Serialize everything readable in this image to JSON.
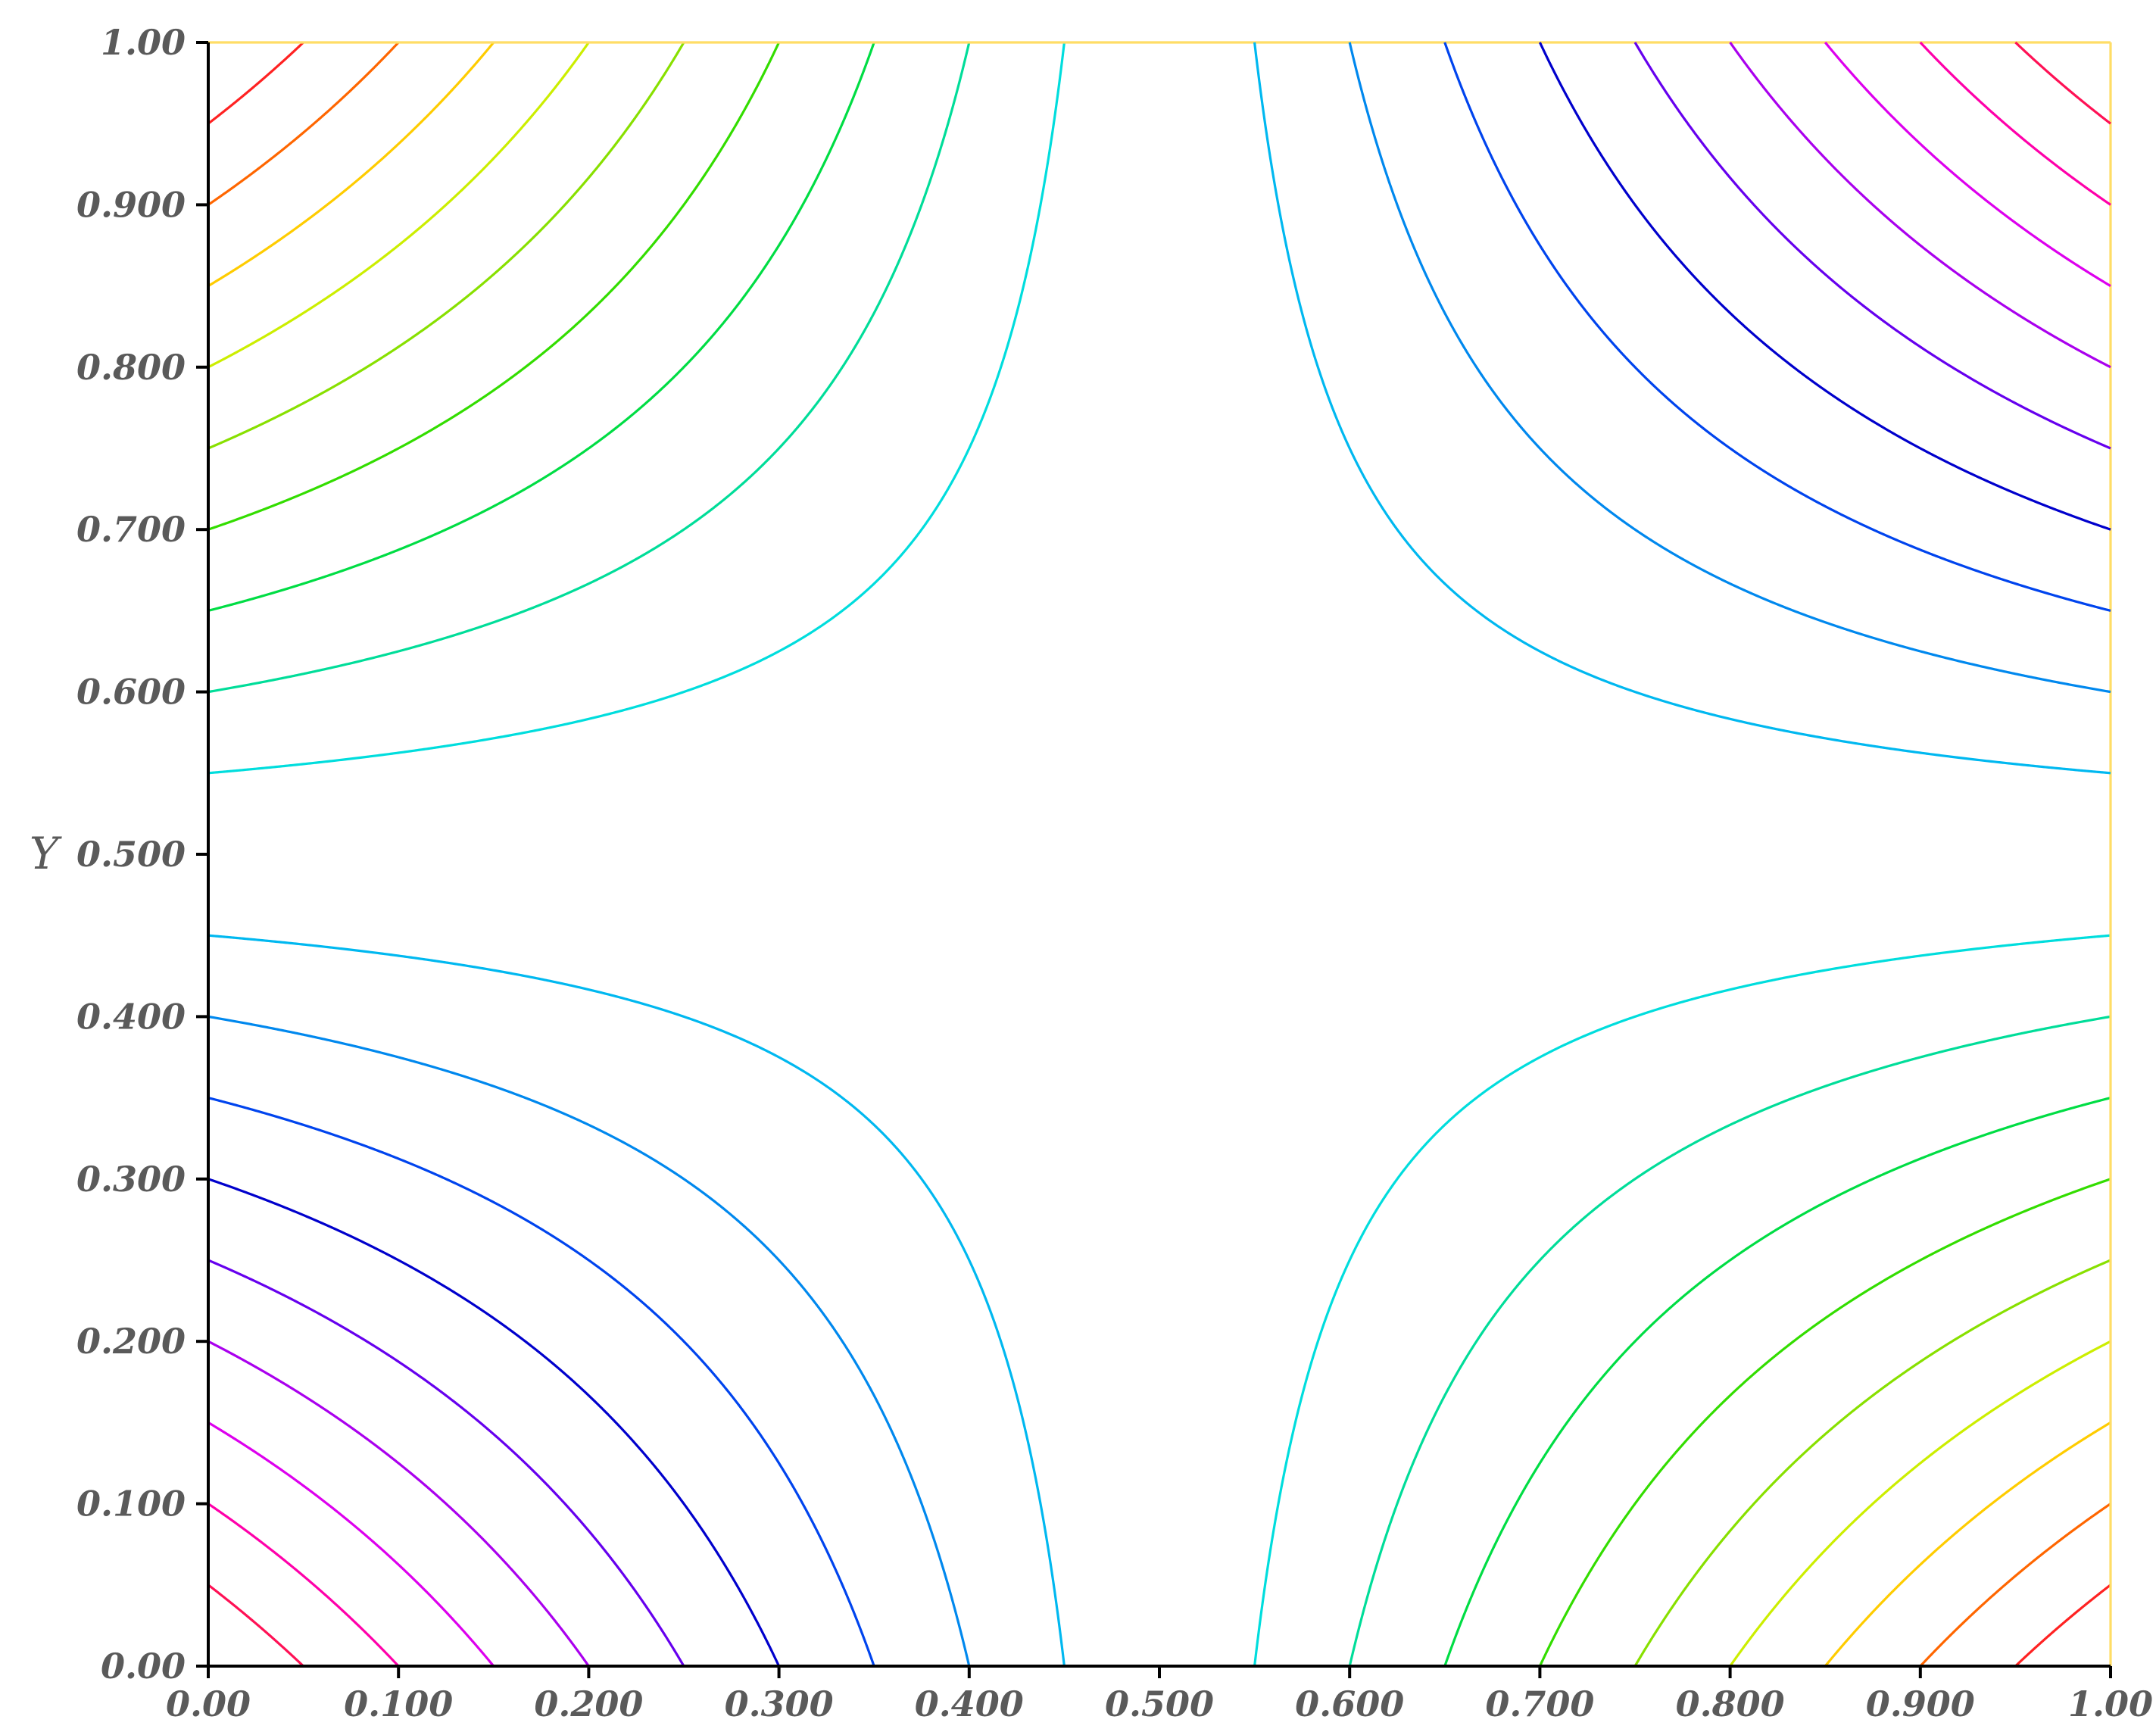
{
  "chart_data": {
    "type": "contour",
    "title": "",
    "xlabel": "",
    "ylabel": "Y",
    "xlim": [
      0,
      1
    ],
    "ylim": [
      0,
      1
    ],
    "grid": false,
    "legend": "none",
    "function": "(x - 0.5) * (y - 0.5)",
    "x_ticks": [
      {
        "value": 0.0,
        "label": "0.00"
      },
      {
        "value": 0.1,
        "label": "0.100"
      },
      {
        "value": 0.2,
        "label": "0.200"
      },
      {
        "value": 0.3,
        "label": "0.300"
      },
      {
        "value": 0.4,
        "label": "0.400"
      },
      {
        "value": 0.5,
        "label": "0.500"
      },
      {
        "value": 0.6,
        "label": "0.600"
      },
      {
        "value": 0.7,
        "label": "0.700"
      },
      {
        "value": 0.8,
        "label": "0.800"
      },
      {
        "value": 0.9,
        "label": "0.900"
      },
      {
        "value": 1.0,
        "label": "1.00"
      }
    ],
    "y_ticks": [
      {
        "value": 0.0,
        "label": "0.00"
      },
      {
        "value": 0.1,
        "label": "0.100"
      },
      {
        "value": 0.2,
        "label": "0.200"
      },
      {
        "value": 0.3,
        "label": "0.300"
      },
      {
        "value": 0.4,
        "label": "0.400"
      },
      {
        "value": 0.5,
        "label": "0.500"
      },
      {
        "value": 0.6,
        "label": "0.600"
      },
      {
        "value": 0.7,
        "label": "0.700"
      },
      {
        "value": 0.8,
        "label": "0.800"
      },
      {
        "value": 0.9,
        "label": "0.900"
      },
      {
        "value": 1.0,
        "label": "1.00"
      }
    ],
    "contour_levels": [
      {
        "value": -0.225,
        "color": "#ff2222"
      },
      {
        "value": -0.2,
        "color": "#ff6600"
      },
      {
        "value": -0.175,
        "color": "#ffcc00"
      },
      {
        "value": -0.15,
        "color": "#ccee00"
      },
      {
        "value": -0.125,
        "color": "#88e000"
      },
      {
        "value": -0.1,
        "color": "#33dd00"
      },
      {
        "value": -0.075,
        "color": "#00dd44"
      },
      {
        "value": -0.05,
        "color": "#00dd99"
      },
      {
        "value": -0.025,
        "color": "#00dddd"
      },
      {
        "value": 0.0,
        "color": "#ffdd66"
      },
      {
        "value": 0.025,
        "color": "#00b8f0"
      },
      {
        "value": 0.05,
        "color": "#0088ee"
      },
      {
        "value": 0.075,
        "color": "#0044ee"
      },
      {
        "value": 0.1,
        "color": "#0000cc"
      },
      {
        "value": 0.125,
        "color": "#6600ee"
      },
      {
        "value": 0.15,
        "color": "#aa00ee"
      },
      {
        "value": 0.175,
        "color": "#dd00ee"
      },
      {
        "value": 0.2,
        "color": "#ff00aa"
      },
      {
        "value": 0.225,
        "color": "#ff1155"
      }
    ]
  }
}
